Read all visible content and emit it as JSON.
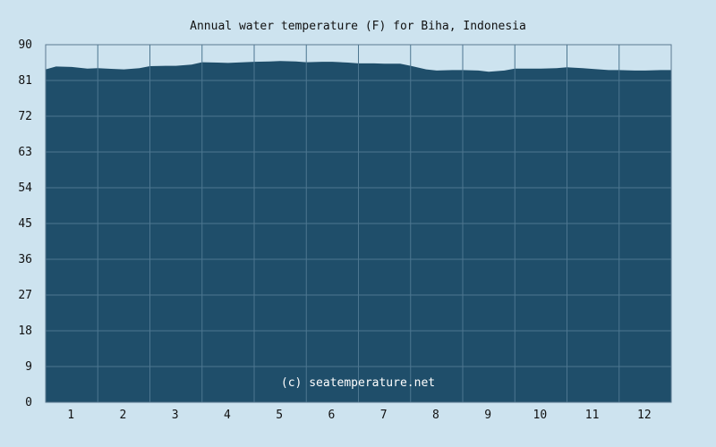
{
  "chart_data": {
    "type": "area",
    "title": "Annual water temperature (F) for Biha, Indonesia",
    "watermark": "(c) seatemperature.net",
    "xlabel": "",
    "ylabel": "",
    "x_ticks": [
      "1",
      "2",
      "3",
      "4",
      "5",
      "6",
      "7",
      "8",
      "9",
      "10",
      "11",
      "12"
    ],
    "y_ticks": [
      "0",
      "9",
      "18",
      "27",
      "36",
      "45",
      "54",
      "63",
      "72",
      "81",
      "90"
    ],
    "ylim": [
      0,
      90
    ],
    "xlim": [
      0.5,
      12.5
    ],
    "grid": true,
    "colors": {
      "background": "#cde3ef",
      "fill": "#1f4e6a",
      "grid": "#4d7690",
      "border": "#5c7a90"
    },
    "series": [
      {
        "x": [
          0.5,
          0.7,
          1.0,
          1.3,
          1.5,
          1.8,
          2.0,
          2.3,
          2.5,
          2.8,
          3.0,
          3.3,
          3.5,
          3.8,
          4.0,
          4.3,
          4.5,
          4.8,
          5.0,
          5.3,
          5.5,
          5.8,
          6.0,
          6.3,
          6.5,
          6.8,
          7.0,
          7.3,
          7.5,
          7.8,
          8.0,
          8.3,
          8.5,
          8.8,
          9.0,
          9.3,
          9.5,
          9.8,
          10.0,
          10.3,
          10.5,
          10.8,
          11.0,
          11.3,
          11.5,
          11.8,
          12.0,
          12.3,
          12.5
        ],
        "y": [
          83.8,
          84.5,
          84.4,
          84.0,
          84.1,
          83.9,
          83.8,
          84.1,
          84.6,
          84.7,
          84.7,
          85.0,
          85.6,
          85.5,
          85.4,
          85.6,
          85.7,
          85.8,
          85.9,
          85.8,
          85.6,
          85.7,
          85.7,
          85.5,
          85.3,
          85.3,
          85.2,
          85.2,
          84.7,
          83.8,
          83.5,
          83.6,
          83.6,
          83.5,
          83.2,
          83.5,
          84.0,
          84.0,
          84.0,
          84.1,
          84.3,
          84.1,
          83.9,
          83.6,
          83.6,
          83.5,
          83.5,
          83.6,
          83.6
        ]
      }
    ]
  }
}
